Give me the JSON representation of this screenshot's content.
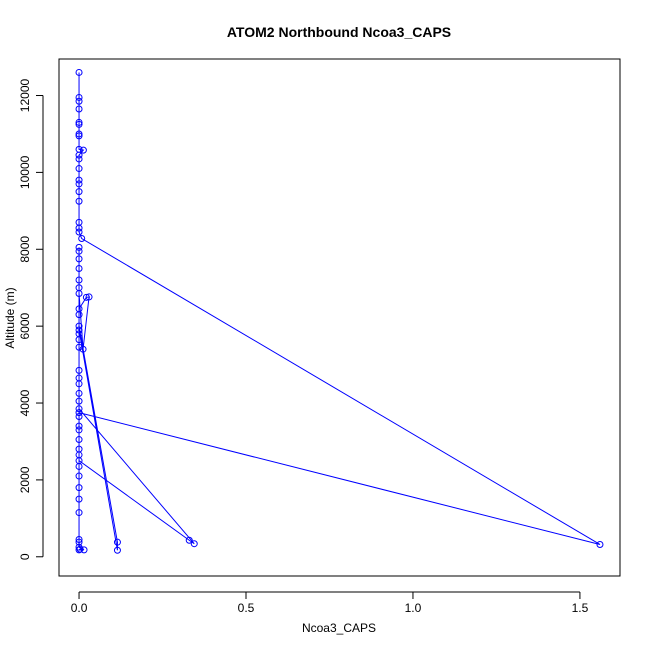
{
  "chart_data": {
    "type": "line",
    "title": "ATOM2 Northbound Ncoa3_CAPS",
    "xlabel": "Ncoa3_CAPS",
    "ylabel": "Altitude (m)",
    "xlim": [
      -0.06,
      1.62
    ],
    "ylim": [
      -500,
      12950
    ],
    "xticks": [
      0.0,
      0.5,
      1.0,
      1.5
    ],
    "xtick_labels": [
      "0.0",
      "0.5",
      "1.0",
      "1.5"
    ],
    "yticks": [
      0,
      2000,
      4000,
      6000,
      8000,
      10000,
      12000
    ],
    "ytick_labels": [
      "0",
      "2000",
      "4000",
      "6000",
      "8000",
      "10000",
      "12000"
    ],
    "grid": false,
    "legend": "none",
    "markers": "open-circle",
    "color": "#0000ff",
    "series": [
      {
        "points": [
          {
            "x": 0.0,
            "y": 12600
          },
          {
            "x": 0.0,
            "y": 11950
          },
          {
            "x": 0.0,
            "y": 11850
          },
          {
            "x": 0.0,
            "y": 11650
          },
          {
            "x": 0.0,
            "y": 11300
          },
          {
            "x": 0.0,
            "y": 11250
          },
          {
            "x": 0.0,
            "y": 11000
          },
          {
            "x": 0.0,
            "y": 10950
          },
          {
            "x": 0.0,
            "y": 10600
          },
          {
            "x": 0.013,
            "y": 10580
          },
          {
            "x": 0.0,
            "y": 10450
          },
          {
            "x": 0.0,
            "y": 10350
          },
          {
            "x": 0.0,
            "y": 10100
          },
          {
            "x": 0.0,
            "y": 9800
          },
          {
            "x": 0.0,
            "y": 9700
          },
          {
            "x": 0.0,
            "y": 9500
          },
          {
            "x": 0.0,
            "y": 9250
          },
          {
            "x": 0.0,
            "y": 8700
          },
          {
            "x": 0.0,
            "y": 8550
          },
          {
            "x": 0.0,
            "y": 8450
          },
          {
            "x": 0.008,
            "y": 8280
          },
          {
            "x": 1.56,
            "y": 320
          },
          {
            "x": 0.0,
            "y": 3750
          },
          {
            "x": 0.0,
            "y": 3650
          },
          {
            "x": 0.0,
            "y": 3400
          },
          {
            "x": 0.0,
            "y": 3300
          },
          {
            "x": 0.0,
            "y": 3050
          },
          {
            "x": 0.0,
            "y": 2800
          },
          {
            "x": 0.0,
            "y": 2650
          },
          {
            "x": 0.0,
            "y": 2500
          },
          {
            "x": 0.33,
            "y": 430
          },
          {
            "x": 0.345,
            "y": 340
          },
          {
            "x": 0.0,
            "y": 3850
          },
          {
            "x": 0.0,
            "y": 4050
          },
          {
            "x": 0.0,
            "y": 4250
          },
          {
            "x": 0.0,
            "y": 4500
          },
          {
            "x": 0.0,
            "y": 4650
          },
          {
            "x": 0.0,
            "y": 4850
          },
          {
            "x": 0.0,
            "y": 5450
          },
          {
            "x": 0.0,
            "y": 5650
          },
          {
            "x": 0.0,
            "y": 5800
          },
          {
            "x": 0.0,
            "y": 5900
          },
          {
            "x": 0.115,
            "y": 170
          },
          {
            "x": 0.115,
            "y": 380
          },
          {
            "x": 0.0,
            "y": 6000
          },
          {
            "x": 0.0,
            "y": 6300
          },
          {
            "x": 0.0,
            "y": 6450
          },
          {
            "x": 0.022,
            "y": 6750
          },
          {
            "x": 0.03,
            "y": 6760
          },
          {
            "x": 0.012,
            "y": 5400
          },
          {
            "x": 0.0,
            "y": 6850
          },
          {
            "x": 0.0,
            "y": 7000
          },
          {
            "x": 0.0,
            "y": 7200
          },
          {
            "x": 0.0,
            "y": 7500
          },
          {
            "x": 0.0,
            "y": 7750
          },
          {
            "x": 0.0,
            "y": 7950
          },
          {
            "x": 0.0,
            "y": 8050
          },
          {
            "x": 0.0,
            "y": 2350
          },
          {
            "x": 0.0,
            "y": 2100
          },
          {
            "x": 0.0,
            "y": 1800
          },
          {
            "x": 0.0,
            "y": 1500
          },
          {
            "x": 0.0,
            "y": 1150
          },
          {
            "x": 0.0,
            "y": 450
          },
          {
            "x": 0.0,
            "y": 380
          },
          {
            "x": 0.0,
            "y": 250
          },
          {
            "x": 0.015,
            "y": 180
          },
          {
            "x": 0.003,
            "y": 200
          },
          {
            "x": 0.0,
            "y": 180
          }
        ]
      }
    ]
  }
}
